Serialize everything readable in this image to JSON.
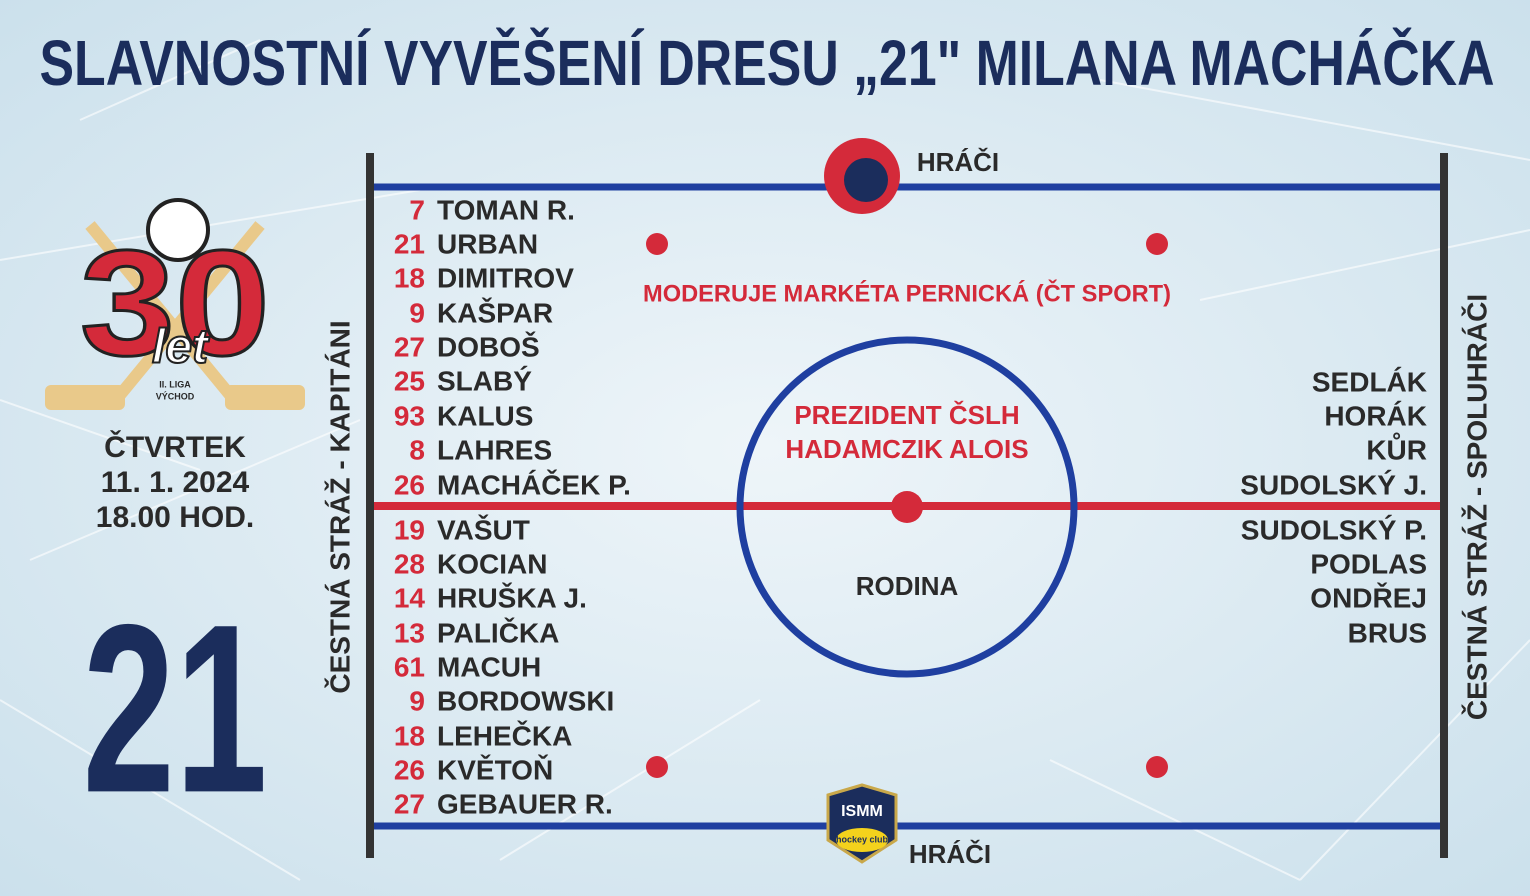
{
  "title": "SLAVNOSTNÍ VYVĚŠENÍ DRESU „21\" MILANA MACHÁČKA",
  "anniversary_logo": {
    "number": "30",
    "word": "let",
    "league": "II. LIGA",
    "region": "VÝCHOD"
  },
  "event": {
    "day": "ČTVRTEK",
    "date": "11. 1. 2024",
    "time": "18.00 HOD."
  },
  "jersey_number": "21",
  "rink": {
    "top_label": "HRÁČI",
    "bottom_label": "HRÁČI",
    "left_label": "ČESTNÁ STRÁŽ - KAPITÁNI",
    "right_label": "ČESTNÁ STRÁŽ - SPOLUHRÁČI",
    "moderator": "MODERUJE MARKÉTA PERNICKÁ (ČT SPORT)",
    "president": [
      "PREZIDENT ČSLH",
      "HADAMCZIK ALOIS"
    ],
    "center": "RODINA",
    "sponsor_logo": {
      "name": "ISMM",
      "club": "hockey club"
    }
  },
  "players": [
    {
      "number": 7,
      "name": "TOMAN R."
    },
    {
      "number": 21,
      "name": "URBAN"
    },
    {
      "number": 18,
      "name": "DIMITROV"
    },
    {
      "number": 9,
      "name": "KAŠPAR"
    },
    {
      "number": 27,
      "name": "DOBOŠ"
    },
    {
      "number": 25,
      "name": "SLABÝ"
    },
    {
      "number": 93,
      "name": "KALUS"
    },
    {
      "number": 8,
      "name": "LAHRES"
    },
    {
      "number": 26,
      "name": "MACHÁČEK P."
    },
    {
      "number": 19,
      "name": "VAŠUT"
    },
    {
      "number": 28,
      "name": "KOCIAN"
    },
    {
      "number": 14,
      "name": "HRUŠKA J."
    },
    {
      "number": 13,
      "name": "PALIČKA"
    },
    {
      "number": 61,
      "name": "MACUH"
    },
    {
      "number": 9,
      "name": "BORDOWSKI"
    },
    {
      "number": 18,
      "name": "LEHEČKA"
    },
    {
      "number": 26,
      "name": "KVĚTOŇ"
    },
    {
      "number": 27,
      "name": "GEBAUER R."
    }
  ],
  "teammates": [
    "SEDLÁK",
    "HORÁK",
    "KŮR",
    "SUDOLSKÝ J.",
    "SUDOLSKÝ P.",
    "PODLAS",
    "ONDŘEJ",
    "BRUS"
  ]
}
